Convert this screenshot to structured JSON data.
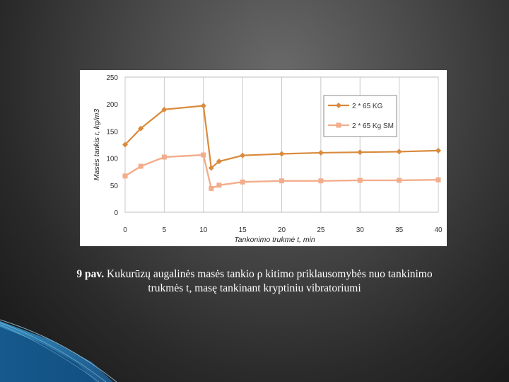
{
  "chart_data": {
    "type": "line",
    "xlabel": "Tankonimo trukmė t, min",
    "ylabel": "Masės tankis r, kg/m3",
    "xlim": [
      0,
      40
    ],
    "ylim": [
      0,
      250
    ],
    "xticks": [
      "0",
      "5",
      "10",
      "15",
      "20",
      "25",
      "30",
      "35",
      "40"
    ],
    "yticks": [
      "0",
      "50",
      "100",
      "150",
      "200",
      "250"
    ],
    "grid": "vertical",
    "legend_position": "top-right",
    "series": [
      {
        "name": "2 * 65 KG",
        "color": "#d98a3c",
        "marker": "diamond",
        "x": [
          0,
          2,
          5,
          10,
          11,
          12,
          15,
          20,
          25,
          30,
          35,
          40
        ],
        "y": [
          125,
          155,
          190,
          197,
          82,
          94,
          105,
          108,
          110,
          111,
          112,
          114
        ]
      },
      {
        "name": "2 * 65 Kg SM",
        "color": "#f2ad8c",
        "marker": "square",
        "x": [
          0,
          2,
          5,
          10,
          11,
          12,
          15,
          20,
          25,
          30,
          35,
          40
        ],
        "y": [
          67,
          85,
          102,
          106,
          44,
          50,
          56,
          58,
          58,
          59,
          59,
          60
        ]
      }
    ]
  },
  "caption": {
    "lead": "9 pav.",
    "line1": " Kukurūzų augalinės masės tankio ρ kitimo priklausomybės nuo tankinimo",
    "line2": "trukmės t, masę tankinant kryptiniu vibratoriumi"
  }
}
